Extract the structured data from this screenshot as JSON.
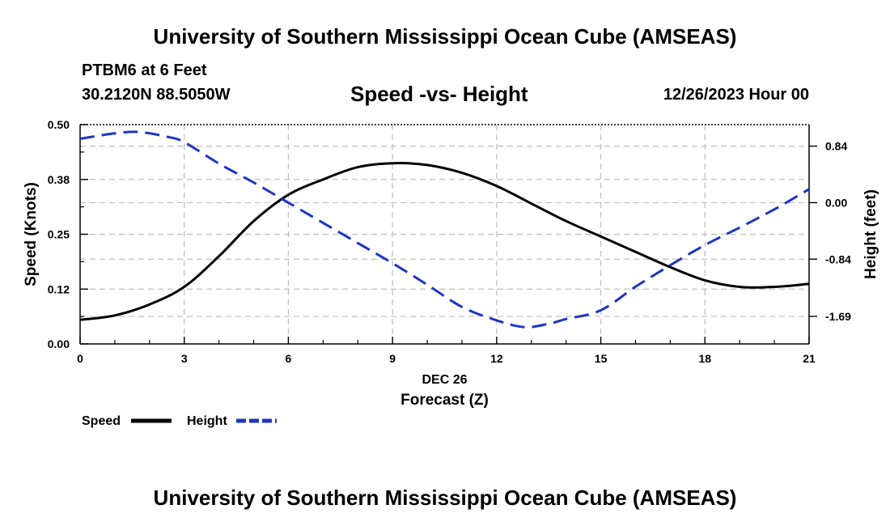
{
  "header": {
    "top_title": "University of Southern Mississippi Ocean Cube (AMSEAS)",
    "station": "PTBM6 at 6 Feet",
    "coords": "30.2120N  88.5050W",
    "date_hour": "12/26/2023 Hour 00",
    "bottom_title": "University of Southern Mississippi Ocean Cube (AMSEAS)"
  },
  "chart_data": {
    "type": "line",
    "title": "Speed -vs- Height",
    "xlabel_date": "DEC 26",
    "xlabel": "Forecast (Z)",
    "ylabel": "Speed (Knots)",
    "y2label": "Height (feet)",
    "xlim": [
      0,
      21
    ],
    "ylim": [
      0,
      0.5
    ],
    "y2lim": [
      -2.1,
      1.16
    ],
    "x_ticks": [
      0,
      3,
      6,
      9,
      12,
      15,
      18,
      21
    ],
    "x_tick_labels": [
      "0",
      "3",
      "6",
      "9",
      "12",
      "15",
      "18",
      "21"
    ],
    "y_ticks": [
      0,
      0.125,
      0.25,
      0.375,
      0.5
    ],
    "y_tick_labels": [
      "0.00",
      "0.12",
      "0.25",
      "0.38",
      "0.50"
    ],
    "y2_ticks": [
      -1.69,
      -0.84,
      0,
      0.84
    ],
    "y2_tick_labels": [
      "-1.69",
      "-0.84",
      "0.00",
      "0.84"
    ],
    "grid": true,
    "series": [
      {
        "name": "Speed",
        "axis": "left",
        "color": "#000000",
        "dash": "solid",
        "x": [
          0,
          1,
          2,
          3,
          4,
          5,
          6,
          7,
          8,
          9,
          10,
          11,
          12,
          13,
          14,
          15,
          16,
          17,
          18,
          19,
          20,
          21
        ],
        "values": [
          0.055,
          0.065,
          0.09,
          0.13,
          0.2,
          0.28,
          0.34,
          0.375,
          0.403,
          0.412,
          0.408,
          0.39,
          0.36,
          0.32,
          0.28,
          0.245,
          0.21,
          0.175,
          0.145,
          0.13,
          0.13,
          0.137
        ]
      },
      {
        "name": "Height",
        "axis": "right",
        "color": "#1d35c4",
        "dash": "dashed",
        "x": [
          0,
          1,
          1.7,
          2.5,
          3,
          4,
          5,
          6,
          7,
          8,
          9,
          10,
          11,
          12,
          12.8,
          13.5,
          14,
          15,
          16,
          17,
          18,
          19,
          20,
          21
        ],
        "values": [
          0.95,
          1.03,
          1.05,
          0.98,
          0.9,
          0.58,
          0.3,
          0.0,
          -0.3,
          -0.6,
          -0.9,
          -1.22,
          -1.55,
          -1.75,
          -1.85,
          -1.8,
          -1.73,
          -1.6,
          -1.25,
          -0.93,
          -0.63,
          -0.37,
          -0.1,
          0.2
        ]
      }
    ],
    "legend": [
      {
        "label": "Speed",
        "color": "#000000",
        "dash": "solid"
      },
      {
        "label": "Height",
        "color": "#1d35c4",
        "dash": "dashed"
      }
    ]
  }
}
